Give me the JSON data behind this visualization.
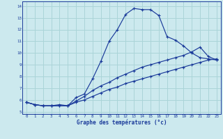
{
  "title": "Graphe des températures (°c)",
  "background_color": "#cce9ee",
  "grid_color": "#aad4d8",
  "line_color": "#1a3a9a",
  "xlim": [
    -0.5,
    23.5
  ],
  "ylim": [
    4.8,
    14.4
  ],
  "yticks": [
    5,
    6,
    7,
    8,
    9,
    10,
    11,
    12,
    13,
    14
  ],
  "xticks": [
    0,
    1,
    2,
    3,
    4,
    5,
    6,
    7,
    8,
    9,
    10,
    11,
    12,
    13,
    14,
    15,
    16,
    17,
    18,
    19,
    20,
    21,
    22,
    23
  ],
  "line1_x": [
    0,
    1,
    2,
    3,
    4,
    5,
    6,
    7,
    8,
    9,
    10,
    11,
    12,
    13,
    14,
    15,
    16,
    17,
    18,
    19,
    20,
    21,
    22,
    23
  ],
  "line1_y": [
    5.8,
    5.6,
    5.5,
    5.5,
    5.6,
    5.5,
    6.2,
    6.5,
    7.8,
    9.3,
    11.0,
    12.0,
    13.3,
    13.8,
    13.7,
    13.7,
    13.2,
    11.4,
    11.1,
    10.6,
    10.0,
    9.6,
    9.5,
    9.4
  ],
  "line2_x": [
    0,
    1,
    2,
    3,
    4,
    5,
    6,
    7,
    8,
    9,
    10,
    11,
    12,
    13,
    14,
    15,
    16,
    17,
    18,
    19,
    20,
    21,
    22,
    23
  ],
  "line2_y": [
    5.8,
    5.6,
    5.5,
    5.5,
    5.5,
    5.5,
    5.9,
    6.3,
    6.8,
    7.2,
    7.5,
    7.9,
    8.2,
    8.5,
    8.8,
    9.0,
    9.2,
    9.4,
    9.6,
    9.8,
    10.1,
    10.5,
    9.7,
    9.4
  ],
  "line3_x": [
    0,
    1,
    2,
    3,
    4,
    5,
    6,
    7,
    8,
    9,
    10,
    11,
    12,
    13,
    14,
    15,
    16,
    17,
    18,
    19,
    20,
    21,
    22,
    23
  ],
  "line3_y": [
    5.8,
    5.6,
    5.5,
    5.5,
    5.5,
    5.5,
    5.8,
    6.0,
    6.3,
    6.6,
    6.9,
    7.1,
    7.4,
    7.6,
    7.8,
    8.0,
    8.2,
    8.4,
    8.6,
    8.8,
    9.0,
    9.2,
    9.4,
    9.5
  ]
}
